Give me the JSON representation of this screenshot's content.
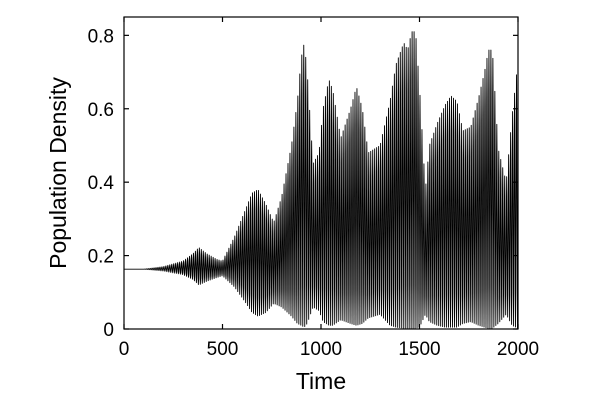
{
  "chart_data": {
    "type": "line",
    "title": "",
    "xlabel": "Time",
    "ylabel": "Population Density",
    "xlim": [
      0,
      2000
    ],
    "ylim": [
      0,
      0.85
    ],
    "xticks": [
      0,
      500,
      1000,
      1500,
      2000
    ],
    "xtick_labels": [
      "0",
      "500",
      "1000",
      "1500",
      "2000"
    ],
    "yticks": [
      0,
      0.2,
      0.4,
      0.6,
      0.8
    ],
    "ytick_labels": [
      "0",
      "0.2",
      "0.4",
      "0.6",
      "0.8"
    ],
    "grid": false,
    "legend": "none",
    "line_color": "#000000",
    "series": [
      {
        "equilibrium": 0.163,
        "oscillation_period": 10,
        "envelope_max": {
          "x": [
            0,
            100,
            200,
            300,
            350,
            380,
            420,
            470,
            500,
            560,
            620,
            650,
            680,
            720,
            760,
            800,
            850,
            880,
            900,
            915,
            930,
            960,
            990,
            1010,
            1040,
            1060,
            1100,
            1150,
            1180,
            1210,
            1240,
            1300,
            1350,
            1380,
            1420,
            1440,
            1460,
            1480,
            1500,
            1530,
            1550,
            1590,
            1630,
            1660,
            1690,
            1720,
            1760,
            1800,
            1830,
            1850,
            1870,
            1900,
            1940,
            1970,
            2000
          ],
          "y": [
            0.163,
            0.163,
            0.17,
            0.185,
            0.205,
            0.222,
            0.205,
            0.19,
            0.185,
            0.25,
            0.33,
            0.37,
            0.38,
            0.34,
            0.29,
            0.36,
            0.5,
            0.62,
            0.74,
            0.78,
            0.7,
            0.45,
            0.48,
            0.6,
            0.68,
            0.65,
            0.52,
            0.6,
            0.66,
            0.6,
            0.48,
            0.5,
            0.62,
            0.72,
            0.78,
            0.76,
            0.81,
            0.81,
            0.66,
            0.38,
            0.5,
            0.56,
            0.61,
            0.635,
            0.62,
            0.54,
            0.55,
            0.63,
            0.7,
            0.76,
            0.76,
            0.49,
            0.4,
            0.58,
            0.73
          ]
        },
        "envelope_min": {
          "x": [
            0,
            100,
            200,
            300,
            350,
            380,
            420,
            470,
            500,
            560,
            620,
            650,
            680,
            720,
            760,
            800,
            850,
            880,
            900,
            915,
            930,
            960,
            990,
            1010,
            1040,
            1060,
            1100,
            1150,
            1180,
            1210,
            1240,
            1300,
            1350,
            1380,
            1420,
            1440,
            1460,
            1480,
            1500,
            1530,
            1550,
            1590,
            1630,
            1660,
            1690,
            1720,
            1760,
            1800,
            1830,
            1850,
            1870,
            1900,
            1940,
            1970,
            2000
          ],
          "y": [
            0.163,
            0.163,
            0.158,
            0.148,
            0.135,
            0.12,
            0.13,
            0.14,
            0.145,
            0.115,
            0.07,
            0.045,
            0.035,
            0.045,
            0.07,
            0.06,
            0.035,
            0.015,
            0.01,
            0.005,
            0.015,
            0.06,
            0.05,
            0.02,
            0.01,
            0.01,
            0.025,
            0.015,
            0.01,
            0.015,
            0.03,
            0.04,
            0.01,
            0.005,
            0.002,
            0.002,
            0.002,
            0.002,
            0.005,
            0.04,
            0.02,
            0.01,
            0.005,
            0.005,
            0.005,
            0.015,
            0.02,
            0.01,
            0.005,
            0.002,
            0.002,
            0.015,
            0.04,
            0.01,
            0.002
          ]
        }
      }
    ]
  }
}
